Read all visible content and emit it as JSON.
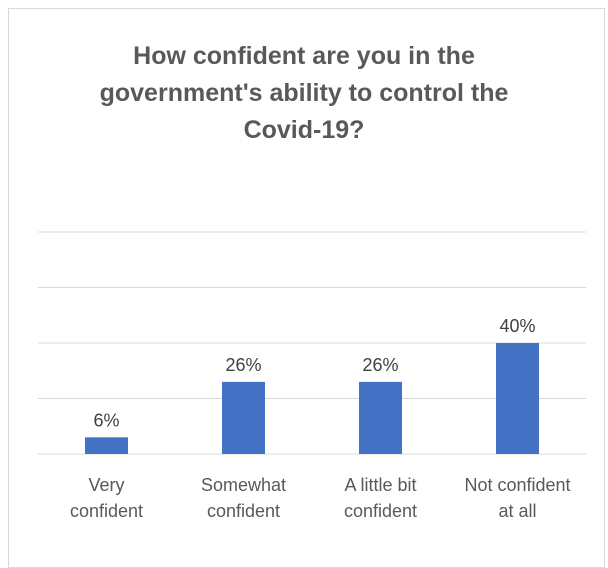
{
  "chart_data": {
    "type": "bar",
    "title": "How confident are you in the government's ability to control the Covid-19?",
    "categories": [
      [
        "Very",
        "confident"
      ],
      [
        "Somewhat",
        "confident"
      ],
      [
        "A little bit",
        "confident"
      ],
      [
        "Not confident",
        "at all"
      ]
    ],
    "values": [
      6,
      26,
      26,
      40
    ],
    "data_labels": [
      "6%",
      "26%",
      "26%",
      "40%"
    ],
    "ylim": [
      0,
      80
    ],
    "grid": true,
    "legend": "none",
    "colors": {
      "bar": "#4472c4",
      "grid": "#d9d9d9"
    }
  }
}
